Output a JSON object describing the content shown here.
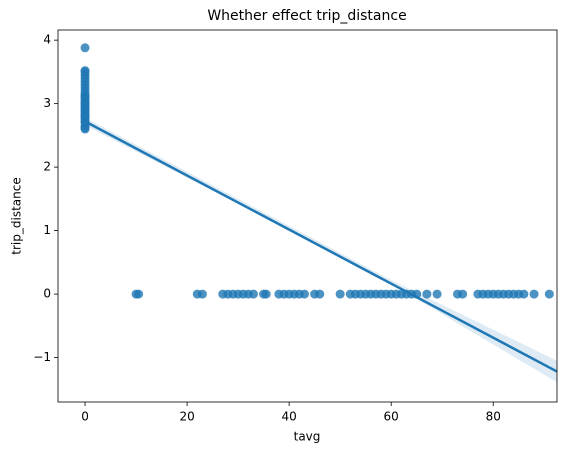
{
  "chart_data": {
    "type": "scatter",
    "title": "Whether effect trip_distance",
    "x_label": "tavg",
    "y_label": "trip_distance",
    "color": "#1f77b4",
    "x": [
      0,
      0,
      0,
      0,
      0,
      0,
      0,
      0,
      0,
      0,
      0,
      0,
      0,
      0,
      0,
      0,
      0,
      0,
      0,
      0,
      0,
      0,
      0,
      0,
      0,
      0,
      0,
      0,
      0,
      0,
      0,
      10,
      10.5,
      22,
      23,
      27,
      28,
      29,
      30,
      31,
      32,
      33,
      35,
      35.5,
      38,
      39,
      40,
      41,
      42,
      43,
      45,
      46,
      50,
      52,
      53,
      54,
      55,
      56,
      57,
      58,
      59,
      60,
      61,
      62,
      63,
      64,
      65,
      67,
      69,
      73,
      74,
      77,
      78,
      79,
      80,
      81,
      82,
      83,
      84,
      85,
      86,
      88,
      91
    ],
    "y": [
      2.6,
      2.62,
      2.65,
      2.7,
      2.72,
      2.75,
      2.78,
      2.8,
      2.82,
      2.85,
      2.88,
      2.9,
      2.92,
      2.95,
      2.97,
      3.0,
      3.02,
      3.05,
      3.08,
      3.1,
      3.12,
      3.15,
      3.2,
      3.25,
      3.3,
      3.35,
      3.4,
      3.45,
      3.5,
      3.52,
      3.88,
      0,
      0,
      0,
      0,
      0,
      0,
      0,
      0,
      0,
      0,
      0,
      0,
      0,
      0,
      0,
      0,
      0,
      0,
      0,
      0,
      0,
      0,
      0,
      0,
      0,
      0,
      0,
      0,
      0,
      0,
      0,
      0,
      0,
      0,
      0,
      0,
      0,
      0,
      0,
      0,
      0,
      0,
      0,
      0,
      0,
      0,
      0,
      0,
      0,
      0,
      0,
      0
    ],
    "regression_line": {
      "x": [
        0,
        92.5
      ],
      "y": [
        2.72,
        -1.22
      ]
    },
    "ci_band": {
      "x": [
        0,
        30,
        60,
        92.5
      ],
      "upper": [
        2.78,
        1.5,
        0.22,
        -1.05
      ],
      "lower": [
        2.66,
        1.42,
        0.16,
        -1.39
      ]
    },
    "xlim": [
      -5.3,
      92.5
    ],
    "ylim": [
      -1.7,
      4.16
    ],
    "xticks": [
      0,
      20,
      40,
      60,
      80
    ],
    "yticks": [
      {
        "value": -1,
        "label": "−1"
      },
      0,
      1,
      2,
      3,
      4
    ]
  }
}
